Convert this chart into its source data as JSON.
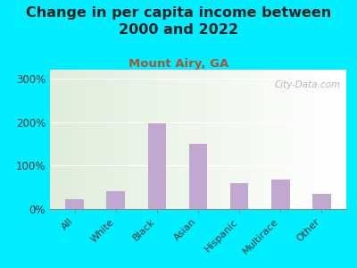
{
  "title": "Change in per capita income between\n2000 and 2022",
  "subtitle": "Mount Airy, GA",
  "categories": [
    "All",
    "White",
    "Black",
    "Asian",
    "Hispanic",
    "Multirace",
    "Other"
  ],
  "values": [
    22,
    42,
    197,
    150,
    60,
    68,
    35
  ],
  "bar_color": "#c0a8d0",
  "background_outer": "#00eeff",
  "title_fontsize": 11.5,
  "subtitle_fontsize": 9.5,
  "title_color": "#222222",
  "subtitle_color": "#aa5533",
  "watermark_text": "City-Data.com",
  "watermark_color": "#aaaaaa",
  "ylim": [
    0,
    320
  ],
  "yticks": [
    0,
    100,
    200,
    300
  ],
  "ytick_labels": [
    "0%",
    "100%",
    "200%",
    "300%"
  ]
}
